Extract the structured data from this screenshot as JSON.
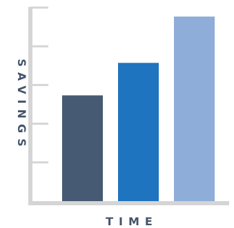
{
  "chart_data": {
    "type": "bar",
    "title": "",
    "xlabel": "TIME",
    "ylabel": "SAVINGS",
    "categories": [
      "",
      "",
      ""
    ],
    "values": [
      153,
      200,
      267
    ],
    "ylim": [
      0,
      280
    ],
    "yticks": [
      56,
      112,
      168,
      224,
      280
    ],
    "tick_labels_shown": false,
    "grid": false,
    "legend": "none",
    "colors": [
      "#475a73",
      "#1f74bf",
      "#8eadd8"
    ],
    "axis_color": "#d5d5d5",
    "label_color": "#44546a"
  }
}
